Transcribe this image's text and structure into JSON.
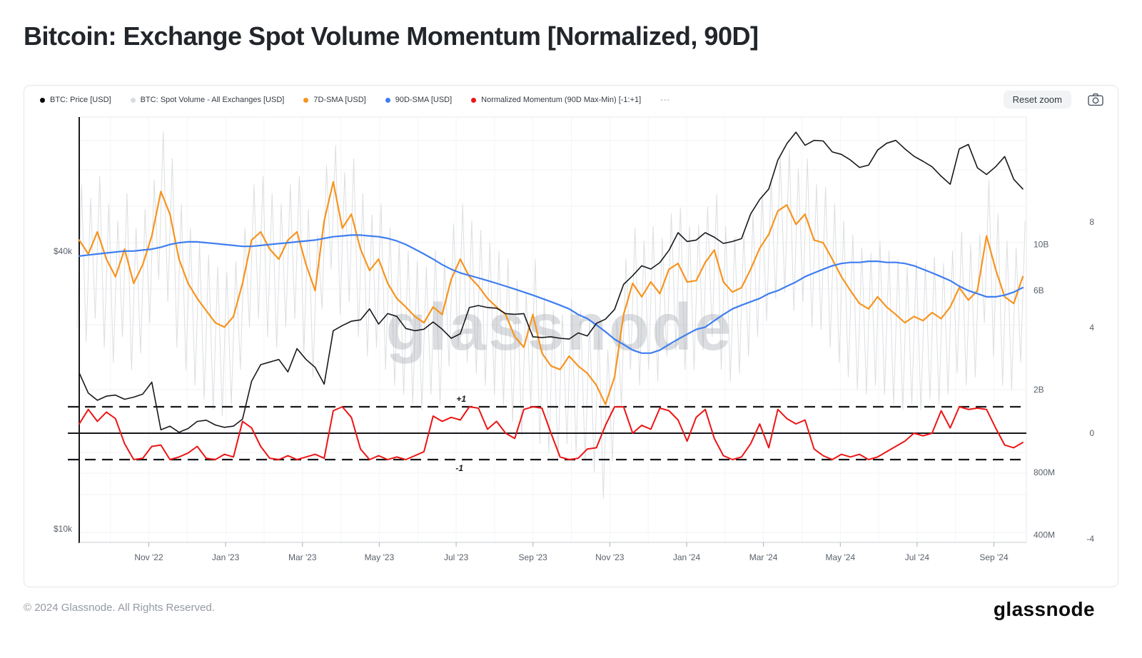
{
  "title": "Bitcoin: Exchange Spot Volume Momentum [Normalized, 90D]",
  "watermark": "glassnode",
  "toolbar": {
    "reset_zoom_label": "Reset zoom",
    "camera_icon": "camera-icon"
  },
  "legend": {
    "items": [
      {
        "id": "btc-price",
        "label": "BTC: Price [USD]",
        "color": "#0a0a0a"
      },
      {
        "id": "spot-volume",
        "label": "BTC: Spot Volume - All Exchanges [USD]",
        "color": "#d9dbde"
      },
      {
        "id": "sma-7d",
        "label": "7D-SMA [USD]",
        "color": "#f7941e"
      },
      {
        "id": "sma-90d",
        "label": "90D-SMA [USD]",
        "color": "#3f7ef0"
      },
      {
        "id": "momentum",
        "label": "Normalized Momentum (90D Max-Min) [-1:+1]",
        "color": "#ed1515"
      }
    ],
    "overflow_label": "---"
  },
  "footer": {
    "copyright": "© 2024 Glassnode. All Rights Reserved.",
    "brand": "glassnode"
  },
  "chart_data": {
    "type": "line",
    "title": "Bitcoin: Exchange Spot Volume Momentum [Normalized, 90D]",
    "x_axis": {
      "tick_labels": [
        "Nov '22",
        "Jan '23",
        "Mar '23",
        "May '23",
        "Jul '23",
        "Sep '23",
        "Nov '23",
        "Jan '24",
        "Mar '24",
        "May '24",
        "Jul '24",
        "Sep '24"
      ],
      "range": [
        "Sep 2022",
        "Sep 2024"
      ],
      "resolution": "weekly"
    },
    "price_axis": {
      "side": "left",
      "scale": "log",
      "unit": "USD",
      "ticks": [
        {
          "label": "$40k",
          "value": 40
        },
        {
          "label": "$10k",
          "value": 10
        }
      ]
    },
    "volume_axis": {
      "side": "right",
      "scale": "log",
      "unit": "USD",
      "ticks": [
        {
          "label": "10B",
          "value": 10
        },
        {
          "label": "6B",
          "value": 6
        },
        {
          "label": "2B",
          "value": 2
        },
        {
          "label": "800M",
          "value": 0.8
        },
        {
          "label": "400M",
          "value": 0.4
        }
      ]
    },
    "momentum_axis": {
      "side": "far-right",
      "scale": "linear",
      "ticks": [
        {
          "label": "8",
          "value": 8
        },
        {
          "label": "4",
          "value": 4
        },
        {
          "label": "0",
          "value": 0
        },
        {
          "label": "-4",
          "value": -4
        }
      ],
      "band_upper": {
        "label": "+1",
        "value": 1
      },
      "band_lower": {
        "label": "-1",
        "value": -1
      },
      "zero_line": 0
    },
    "grid": {
      "horizontal": true,
      "vertical": true
    },
    "series": [
      {
        "name": "BTC: Price [USD]",
        "axis": "price",
        "color": "#17191c",
        "unit": "USD thousands",
        "values": [
          21.8,
          19.7,
          19.0,
          19.4,
          19.5,
          19.1,
          19.3,
          19.6,
          20.8,
          16.4,
          16.7,
          16.2,
          16.5,
          17.1,
          17.2,
          16.8,
          16.6,
          16.7,
          17.3,
          20.9,
          22.7,
          23.0,
          23.3,
          21.9,
          24.6,
          23.3,
          22.4,
          20.6,
          26.9,
          27.6,
          28.2,
          28.4,
          30.0,
          27.8,
          29.3,
          28.9,
          27.2,
          26.9,
          27.1,
          28.1,
          27.1,
          25.9,
          26.5,
          30.2,
          30.5,
          30.2,
          30.1,
          29.3,
          29.2,
          29.3,
          26.1,
          26.0,
          26.1,
          25.9,
          25.8,
          26.6,
          26.2,
          27.9,
          28.5,
          29.9,
          33.9,
          35.4,
          37.2,
          36.6,
          37.8,
          40.2,
          43.9,
          42.0,
          42.3,
          43.9,
          42.9,
          41.6,
          42.0,
          42.6,
          48.2,
          51.8,
          54.6,
          63.1,
          68.5,
          72.5,
          67.9,
          69.6,
          69.4,
          65.7,
          64.9,
          63.1,
          60.8,
          61.5,
          66.3,
          68.6,
          69.6,
          66.7,
          64.3,
          62.7,
          61.0,
          58.2,
          55.9,
          66.7,
          68.2,
          60.7,
          58.7,
          61.0,
          64.2,
          57.3,
          54.6
        ]
      },
      {
        "name": "BTC: Spot Volume - All Exchanges [USD]",
        "axis": "volume",
        "color": "#dcdee1",
        "unit": "USD billions",
        "style": "range-spikes",
        "values": [
          [
            4.0,
            19.4
          ],
          [
            3.4,
            16.7
          ],
          [
            4.4,
            21.3
          ],
          [
            3.2,
            15.7
          ],
          [
            2.7,
            13.0
          ],
          [
            3.6,
            17.6
          ],
          [
            2.5,
            12.0
          ],
          [
            3.0,
            14.8
          ],
          [
            4.2,
            20.4
          ],
          [
            6.8,
            35.0
          ],
          [
            5.3,
            25.9
          ],
          [
            3.2,
            15.7
          ],
          [
            2.5,
            12.0
          ],
          [
            2.1,
            10.2
          ],
          [
            1.8,
            8.9
          ],
          [
            1.6,
            7.8
          ],
          [
            1.5,
            7.4
          ],
          [
            1.7,
            8.3
          ],
          [
            2.5,
            12.0
          ],
          [
            4.0,
            19.4
          ],
          [
            4.4,
            21.3
          ],
          [
            3.6,
            17.6
          ],
          [
            3.2,
            15.7
          ],
          [
            4.0,
            19.4
          ],
          [
            4.4,
            21.3
          ],
          [
            3.0,
            14.8
          ],
          [
            2.3,
            11.1
          ],
          [
            4.9,
            24.0
          ],
          [
            7.6,
            30.0
          ],
          [
            4.6,
            22.2
          ],
          [
            5.3,
            25.9
          ],
          [
            3.6,
            17.6
          ],
          [
            2.9,
            13.9
          ],
          [
            3.2,
            15.7
          ],
          [
            2.5,
            12.0
          ],
          [
            2.1,
            10.2
          ],
          [
            1.9,
            9.3
          ],
          [
            1.7,
            8.3
          ],
          [
            1.6,
            7.8
          ],
          [
            1.9,
            9.3
          ],
          [
            1.7,
            8.5
          ],
          [
            2.6,
            12.6
          ],
          [
            3.2,
            15.7
          ],
          [
            2.7,
            13.0
          ],
          [
            2.4,
            11.7
          ],
          [
            2.1,
            10.2
          ],
          [
            1.9,
            9.3
          ],
          [
            1.7,
            8.5
          ],
          [
            1.4,
            6.7
          ],
          [
            1.2,
            5.9
          ],
          [
            1.7,
            8.5
          ],
          [
            1.1,
            5.6
          ],
          [
            1.0,
            4.8
          ],
          [
            0.9,
            4.6
          ],
          [
            1.1,
            5.4
          ],
          [
            1.0,
            4.8
          ],
          [
            0.9,
            4.4
          ],
          [
            0.8,
            3.9
          ],
          [
            0.6,
            3.1
          ],
          [
            0.9,
            4.3
          ],
          [
            1.7,
            8.5
          ],
          [
            2.5,
            12.0
          ],
          [
            2.1,
            10.4
          ],
          [
            2.5,
            12.2
          ],
          [
            2.2,
            10.7
          ],
          [
            2.9,
            14.1
          ],
          [
            3.1,
            15.0
          ],
          [
            2.5,
            12.2
          ],
          [
            2.5,
            12.4
          ],
          [
            3.1,
            15.2
          ],
          [
            3.6,
            17.4
          ],
          [
            2.5,
            12.2
          ],
          [
            2.2,
            10.9
          ],
          [
            2.4,
            11.5
          ],
          [
            2.9,
            14.1
          ],
          [
            3.6,
            17.8
          ],
          [
            4.3,
            20.7
          ],
          [
            5.5,
            26.8
          ],
          [
            5.9,
            28.7
          ],
          [
            4.8,
            23.1
          ],
          [
            5.3,
            25.9
          ],
          [
            4.0,
            19.4
          ],
          [
            3.9,
            18.9
          ],
          [
            3.2,
            15.7
          ],
          [
            2.7,
            13.0
          ],
          [
            2.3,
            11.1
          ],
          [
            2.0,
            9.6
          ],
          [
            1.9,
            9.1
          ],
          [
            2.1,
            10.4
          ],
          [
            1.9,
            9.3
          ],
          [
            1.7,
            8.5
          ],
          [
            1.6,
            7.8
          ],
          [
            1.7,
            8.3
          ],
          [
            1.6,
            8.0
          ],
          [
            1.8,
            8.7
          ],
          [
            1.7,
            8.1
          ],
          [
            1.9,
            9.3
          ],
          [
            2.4,
            11.5
          ],
          [
            2.1,
            10.0
          ],
          [
            2.3,
            11.1
          ],
          [
            4.2,
            20.4
          ],
          [
            2.9,
            14.1
          ],
          [
            2.1,
            10.4
          ],
          [
            2.0,
            9.6
          ],
          [
            2.7,
            13.0
          ]
        ]
      },
      {
        "name": "7D-SMA [USD]",
        "axis": "volume",
        "color": "#f7941e",
        "unit": "USD billions",
        "values": [
          10.5,
          9.0,
          11.5,
          8.5,
          7.0,
          9.5,
          6.5,
          8.0,
          11.0,
          18.0,
          14.0,
          8.5,
          6.5,
          5.5,
          4.8,
          4.2,
          4.0,
          4.5,
          6.5,
          10.5,
          11.5,
          9.5,
          8.5,
          10.5,
          11.5,
          8.0,
          6.0,
          13.0,
          20.0,
          12.0,
          14.0,
          9.5,
          7.5,
          8.5,
          6.5,
          5.5,
          5.0,
          4.5,
          4.2,
          5.0,
          4.6,
          6.8,
          8.5,
          7.0,
          6.3,
          5.5,
          5.0,
          4.6,
          3.6,
          3.2,
          4.6,
          3.0,
          2.6,
          2.5,
          2.9,
          2.6,
          2.4,
          2.1,
          1.7,
          2.3,
          4.6,
          6.5,
          5.6,
          6.6,
          5.8,
          7.6,
          8.1,
          6.6,
          6.7,
          8.2,
          9.4,
          6.6,
          5.9,
          6.2,
          7.6,
          9.6,
          11.2,
          14.5,
          15.5,
          12.5,
          14.0,
          10.5,
          10.2,
          8.5,
          7.0,
          6.0,
          5.2,
          4.9,
          5.6,
          5.0,
          4.6,
          4.2,
          4.5,
          4.3,
          4.7,
          4.4,
          5.0,
          6.2,
          5.4,
          6.0,
          11.0,
          7.6,
          5.6,
          5.2,
          7.0
        ]
      },
      {
        "name": "90D-SMA [USD]",
        "axis": "volume",
        "color": "#3f7ef0",
        "unit": "USD billions",
        "values": [
          8.8,
          8.9,
          9.0,
          9.1,
          9.2,
          9.3,
          9.3,
          9.4,
          9.5,
          9.7,
          10.0,
          10.2,
          10.3,
          10.3,
          10.2,
          10.1,
          10.0,
          9.9,
          9.8,
          9.8,
          9.9,
          10.0,
          10.1,
          10.2,
          10.3,
          10.4,
          10.5,
          10.7,
          10.9,
          11.0,
          11.1,
          11.1,
          11.0,
          10.9,
          10.7,
          10.4,
          10.0,
          9.5,
          9.0,
          8.5,
          8.0,
          7.6,
          7.3,
          7.1,
          6.9,
          6.7,
          6.5,
          6.3,
          6.1,
          5.9,
          5.7,
          5.5,
          5.3,
          5.1,
          4.9,
          4.6,
          4.4,
          4.1,
          3.8,
          3.5,
          3.3,
          3.1,
          3.0,
          3.0,
          3.1,
          3.3,
          3.5,
          3.7,
          3.9,
          4.0,
          4.3,
          4.6,
          4.9,
          5.1,
          5.3,
          5.5,
          5.8,
          6.0,
          6.3,
          6.6,
          7.0,
          7.3,
          7.6,
          7.9,
          8.1,
          8.2,
          8.2,
          8.3,
          8.3,
          8.2,
          8.2,
          8.1,
          7.9,
          7.6,
          7.3,
          7.0,
          6.7,
          6.3,
          6.0,
          5.8,
          5.6,
          5.6,
          5.7,
          5.9,
          6.2
        ]
      },
      {
        "name": "Normalized Momentum (90D Max-Min) [-1:+1]",
        "axis": "momentum",
        "color": "#ed1515",
        "unit": "normalized",
        "values": [
          0.35,
          0.9,
          0.45,
          0.8,
          0.55,
          -0.4,
          -1.0,
          -0.95,
          -0.5,
          -0.45,
          -1.0,
          -0.9,
          -0.75,
          -0.5,
          -0.95,
          -1.0,
          -0.8,
          -0.9,
          0.45,
          0.2,
          -0.5,
          -0.95,
          -1.0,
          -0.85,
          -1.0,
          -0.9,
          -0.8,
          -0.95,
          0.85,
          1.0,
          0.6,
          -0.6,
          -1.0,
          -0.85,
          -1.0,
          -0.9,
          -1.0,
          -0.85,
          -0.7,
          0.65,
          0.45,
          0.6,
          0.5,
          1.0,
          0.95,
          0.15,
          0.45,
          0.0,
          -0.2,
          0.9,
          1.0,
          0.95,
          0.0,
          -0.9,
          -1.0,
          -0.95,
          -0.6,
          -0.55,
          0.3,
          1.0,
          1.0,
          0.0,
          0.3,
          0.15,
          0.95,
          0.85,
          0.5,
          -0.3,
          0.6,
          0.9,
          -0.2,
          -0.85,
          -1.0,
          -0.9,
          -0.4,
          0.35,
          -0.55,
          0.9,
          0.55,
          0.35,
          0.5,
          -0.6,
          -0.85,
          -1.0,
          -0.8,
          -0.9,
          -0.8,
          -1.0,
          -0.9,
          -0.7,
          -0.5,
          -0.3,
          0.0,
          -0.1,
          0.0,
          0.85,
          0.2,
          1.0,
          0.9,
          0.95,
          0.9,
          0.2,
          -0.45,
          -0.55,
          -0.35
        ]
      }
    ]
  }
}
